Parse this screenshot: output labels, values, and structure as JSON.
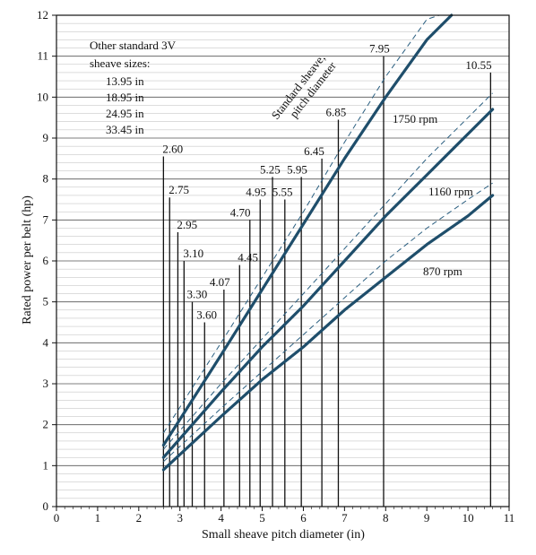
{
  "chart_data": {
    "type": "line",
    "xlabel": "Small sheave pitch diameter (in)",
    "ylabel": "Rated power per belt (hp)",
    "xlim": [
      0,
      11
    ],
    "ylim": [
      0,
      12
    ],
    "xticks": [
      "0",
      "1",
      "2",
      "3",
      "4",
      "5",
      "6",
      "7",
      "8",
      "9",
      "10",
      "11"
    ],
    "yticks": [
      "0",
      "1",
      "2",
      "3",
      "4",
      "5",
      "6",
      "7",
      "8",
      "9",
      "10",
      "11",
      "12"
    ],
    "grid": "horizontal",
    "series": [
      {
        "name": "1750 rpm",
        "color": "#1f4e6b",
        "x": [
          2.6,
          4.0,
          5.0,
          6.0,
          7.0,
          8.0,
          9.0,
          9.6
        ],
        "y": [
          1.5,
          3.7,
          5.3,
          6.9,
          8.5,
          10.0,
          11.4,
          12.0
        ]
      },
      {
        "name": "1160 rpm",
        "color": "#1f4e6b",
        "x": [
          2.6,
          4.0,
          5.0,
          6.0,
          7.0,
          8.0,
          9.0,
          10.0,
          10.6
        ],
        "y": [
          1.2,
          2.8,
          3.9,
          4.9,
          6.0,
          7.1,
          8.1,
          9.1,
          9.7
        ]
      },
      {
        "name": "870 rpm",
        "color": "#1f4e6b",
        "x": [
          2.6,
          4.0,
          5.0,
          6.0,
          7.0,
          8.0,
          9.0,
          10.0,
          10.6
        ],
        "y": [
          0.9,
          2.2,
          3.1,
          3.9,
          4.8,
          5.6,
          6.4,
          7.1,
          7.6
        ]
      }
    ],
    "dashed_series": [
      {
        "x": [
          2.6,
          4.0,
          5.0,
          6.0,
          7.0,
          8.0,
          9.0,
          9.3
        ],
        "y": [
          1.8,
          4.0,
          5.6,
          7.2,
          8.9,
          10.5,
          11.9,
          12.0
        ]
      },
      {
        "x": [
          2.6,
          4.0,
          5.0,
          6.0,
          7.0,
          8.0,
          9.0,
          10.0,
          10.6
        ],
        "y": [
          1.4,
          3.0,
          4.1,
          5.2,
          6.3,
          7.4,
          8.5,
          9.5,
          10.1
        ]
      },
      {
        "x": [
          2.6,
          4.0,
          5.0,
          6.0,
          7.0,
          8.0,
          9.0,
          10.0,
          10.6
        ],
        "y": [
          1.1,
          2.4,
          3.3,
          4.2,
          5.1,
          6.0,
          6.8,
          7.5,
          7.9
        ]
      }
    ],
    "sheave_lines": [
      {
        "label": "2.60",
        "x": 2.6,
        "y_top": 8.55
      },
      {
        "label": "2.75",
        "x": 2.75,
        "y_top": 7.55
      },
      {
        "label": "2.95",
        "x": 2.95,
        "y_top": 6.7
      },
      {
        "label": "3.10",
        "x": 3.1,
        "y_top": 6.0
      },
      {
        "label": "3.30",
        "x": 3.3,
        "y_top": 5.0
      },
      {
        "label": "3.60",
        "x": 3.6,
        "y_top": 4.5
      },
      {
        "label": "4.07",
        "x": 4.07,
        "y_top": 5.3
      },
      {
        "label": "4.45",
        "x": 4.45,
        "y_top": 5.9
      },
      {
        "label": "4.70",
        "x": 4.7,
        "y_top": 7.0
      },
      {
        "label": "4.95",
        "x": 4.95,
        "y_top": 7.5
      },
      {
        "label": "5.25",
        "x": 5.25,
        "y_top": 8.05
      },
      {
        "label": "5.55",
        "x": 5.55,
        "y_top": 7.5
      },
      {
        "label": "5.95",
        "x": 5.95,
        "y_top": 8.05
      },
      {
        "label": "6.45",
        "x": 6.45,
        "y_top": 8.5
      },
      {
        "label": "6.85",
        "x": 6.85,
        "y_top": 9.45
      },
      {
        "label": "7.95",
        "x": 7.95,
        "y_top": 11.0
      },
      {
        "label": "10.55",
        "x": 10.55,
        "y_top": 10.6
      }
    ],
    "annotations": {
      "other_sizes": [
        "Other standard 3V",
        "sheave sizes:",
        "13.95 in",
        "18.95 in",
        "24.95 in",
        "33.45 in"
      ],
      "standard_sheave": [
        "Standard sheave,",
        "pitch diameter"
      ]
    }
  }
}
